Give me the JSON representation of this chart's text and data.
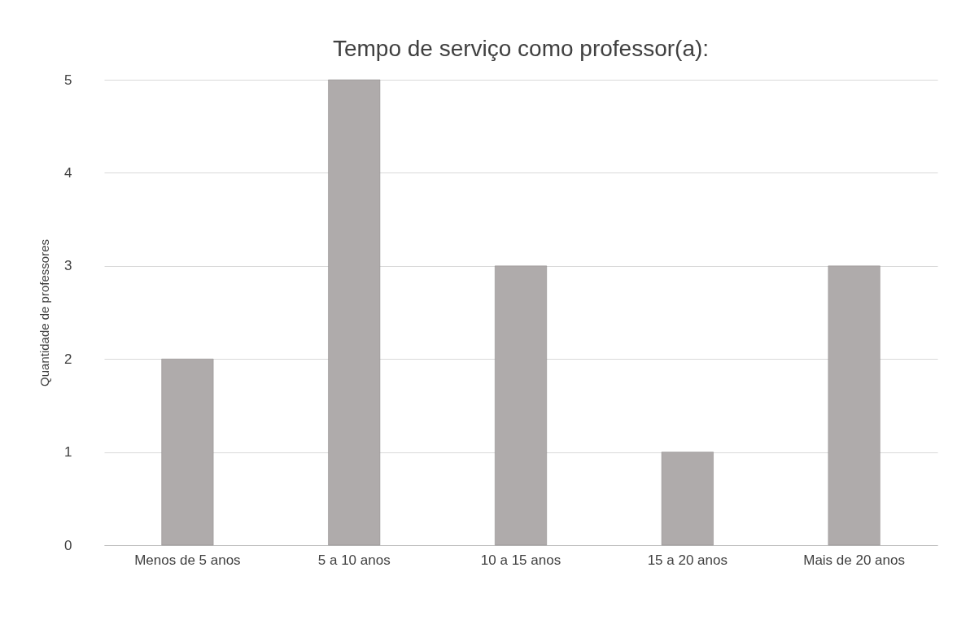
{
  "chart_data": {
    "type": "bar",
    "title": "Tempo de serviço como professor(a):",
    "ylabel": "Quantidade de professores",
    "categories": [
      "Menos de 5 anos",
      "5 a 10 anos",
      "10 a 15 anos",
      "15 a 20 anos",
      "Mais de 20 anos"
    ],
    "values": [
      2,
      5,
      3,
      1,
      3
    ],
    "color": "#afabab",
    "ylim": [
      0,
      5
    ],
    "yticks": [
      0,
      1,
      2,
      3,
      4,
      5
    ],
    "grid": "y"
  }
}
